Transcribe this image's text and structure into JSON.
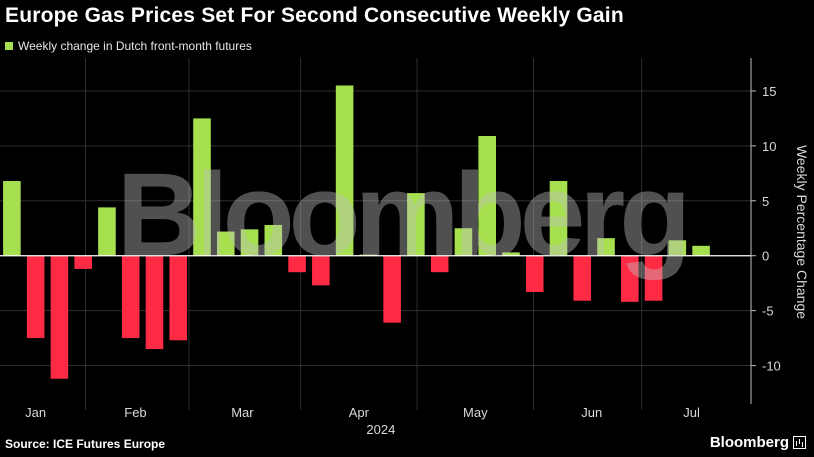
{
  "title": "Europe Gas Prices Set For Second Consecutive Weekly Gain",
  "legend": {
    "label": "Weekly change in Dutch front-month futures"
  },
  "source": "Source: ICE Futures Europe",
  "brand": "Bloomberg",
  "watermark": "Bloomberg",
  "colors": {
    "positive": "#a6e04e",
    "negative": "#ff2a44",
    "grid": "#2e2e2e",
    "zero": "#ffffff",
    "axis_text": "#d9d9d9"
  },
  "chart_data": {
    "type": "bar",
    "ylabel": "Weekly Percentage Change",
    "ylim": [
      -13.5,
      18
    ],
    "yticks": [
      15,
      10,
      5,
      0,
      -5,
      -10
    ],
    "x_unit": "weeks of 2024",
    "xlim": [
      0,
      31.6
    ],
    "months": [
      {
        "label": "Jan",
        "pos": 1.5
      },
      {
        "label": "Feb",
        "pos": 5.7
      },
      {
        "label": "Mar",
        "pos": 10.2
      },
      {
        "label": "Apr",
        "pos": 15.1
      },
      {
        "label": "May",
        "pos": 20.0
      },
      {
        "label": "Jun",
        "pos": 24.9
      },
      {
        "label": "Jul",
        "pos": 29.1
      }
    ],
    "year": "2024",
    "values": [
      6.8,
      -7.5,
      -11.2,
      -1.2,
      4.4,
      -7.5,
      -8.5,
      -7.7,
      12.5,
      2.2,
      2.4,
      2.8,
      -1.5,
      -2.7,
      15.5,
      0.1,
      -6.1,
      5.7,
      -1.5,
      2.5,
      10.9,
      0.3,
      -3.3,
      6.8,
      -4.1,
      1.6,
      -4.2,
      -4.1,
      1.4,
      0.9
    ]
  }
}
